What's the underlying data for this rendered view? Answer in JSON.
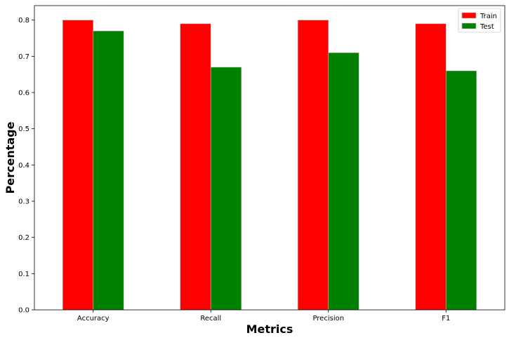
{
  "chart_data": {
    "type": "bar",
    "title": "",
    "xlabel": "Metrics",
    "ylabel": "Percentage",
    "categories": [
      "Accuracy",
      "Recall",
      "Precision",
      "F1"
    ],
    "series": [
      {
        "name": "Train",
        "color": "#ff0000",
        "values": [
          0.8,
          0.79,
          0.8,
          0.79
        ]
      },
      {
        "name": "Test",
        "color": "#008000",
        "values": [
          0.77,
          0.67,
          0.71,
          0.66
        ]
      }
    ],
    "ylim": [
      0.0,
      0.84
    ],
    "yticks": [
      "0.0",
      "0.1",
      "0.2",
      "0.3",
      "0.4",
      "0.5",
      "0.6",
      "0.7",
      "0.8"
    ],
    "grid": false,
    "legend_position": "top-right"
  }
}
